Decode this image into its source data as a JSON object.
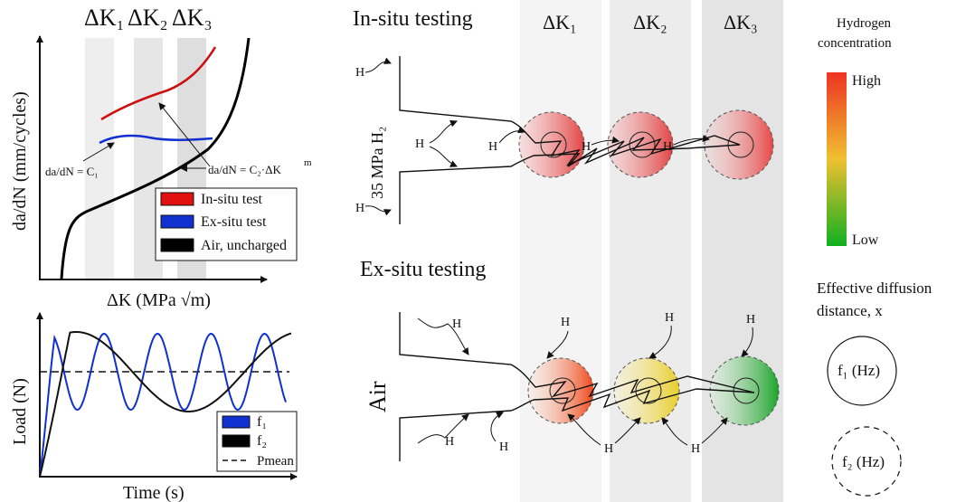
{
  "top_chart": {
    "dk1": "ΔK₁",
    "dk2": "ΔK₂",
    "dk3": "ΔK₃",
    "ylabel": "da/dN (mm/cycles)",
    "xlabel": "ΔK (MPa √m)",
    "annot_c1": "da/dN = C₁",
    "annot_c2_base": "da/dN = C₂·ΔK",
    "annot_c2_exp": "m",
    "legend": [
      {
        "label": "In-situ test",
        "color": "#e01010"
      },
      {
        "label": "Ex-situ test",
        "color": "#1030d0"
      },
      {
        "label": "Air, uncharged",
        "color": "#000000"
      }
    ]
  },
  "bottom_chart": {
    "ylabel": "Load (N)",
    "xlabel": "Time (s)",
    "legend": [
      {
        "label": "f₁",
        "color": "#1030d0"
      },
      {
        "label": "f₂",
        "color": "#000000"
      },
      {
        "label": "Pmean",
        "color": "#000000"
      }
    ]
  },
  "center": {
    "insitu_title": "In-situ testing",
    "exsitu_title": "Ex-situ testing",
    "col_dk1": "ΔK₁",
    "col_dk2": "ΔK₂",
    "col_dk3": "ΔK₃",
    "insitu_env": "35 MPa H₂",
    "exsitu_env": "Air",
    "h": "H"
  },
  "right": {
    "h_conc_line1": "Hydrogen",
    "h_conc_line2": "concentration",
    "high": "High",
    "low": "Low",
    "eff_line1": "Effective diffusion",
    "eff_line2": "distance, x",
    "f1": "f₁ (Hz)",
    "f2": "f₂ (Hz)",
    "colors": {
      "high": "#ee3322",
      "mid": "#f0c030",
      "low": "#10b020"
    }
  }
}
